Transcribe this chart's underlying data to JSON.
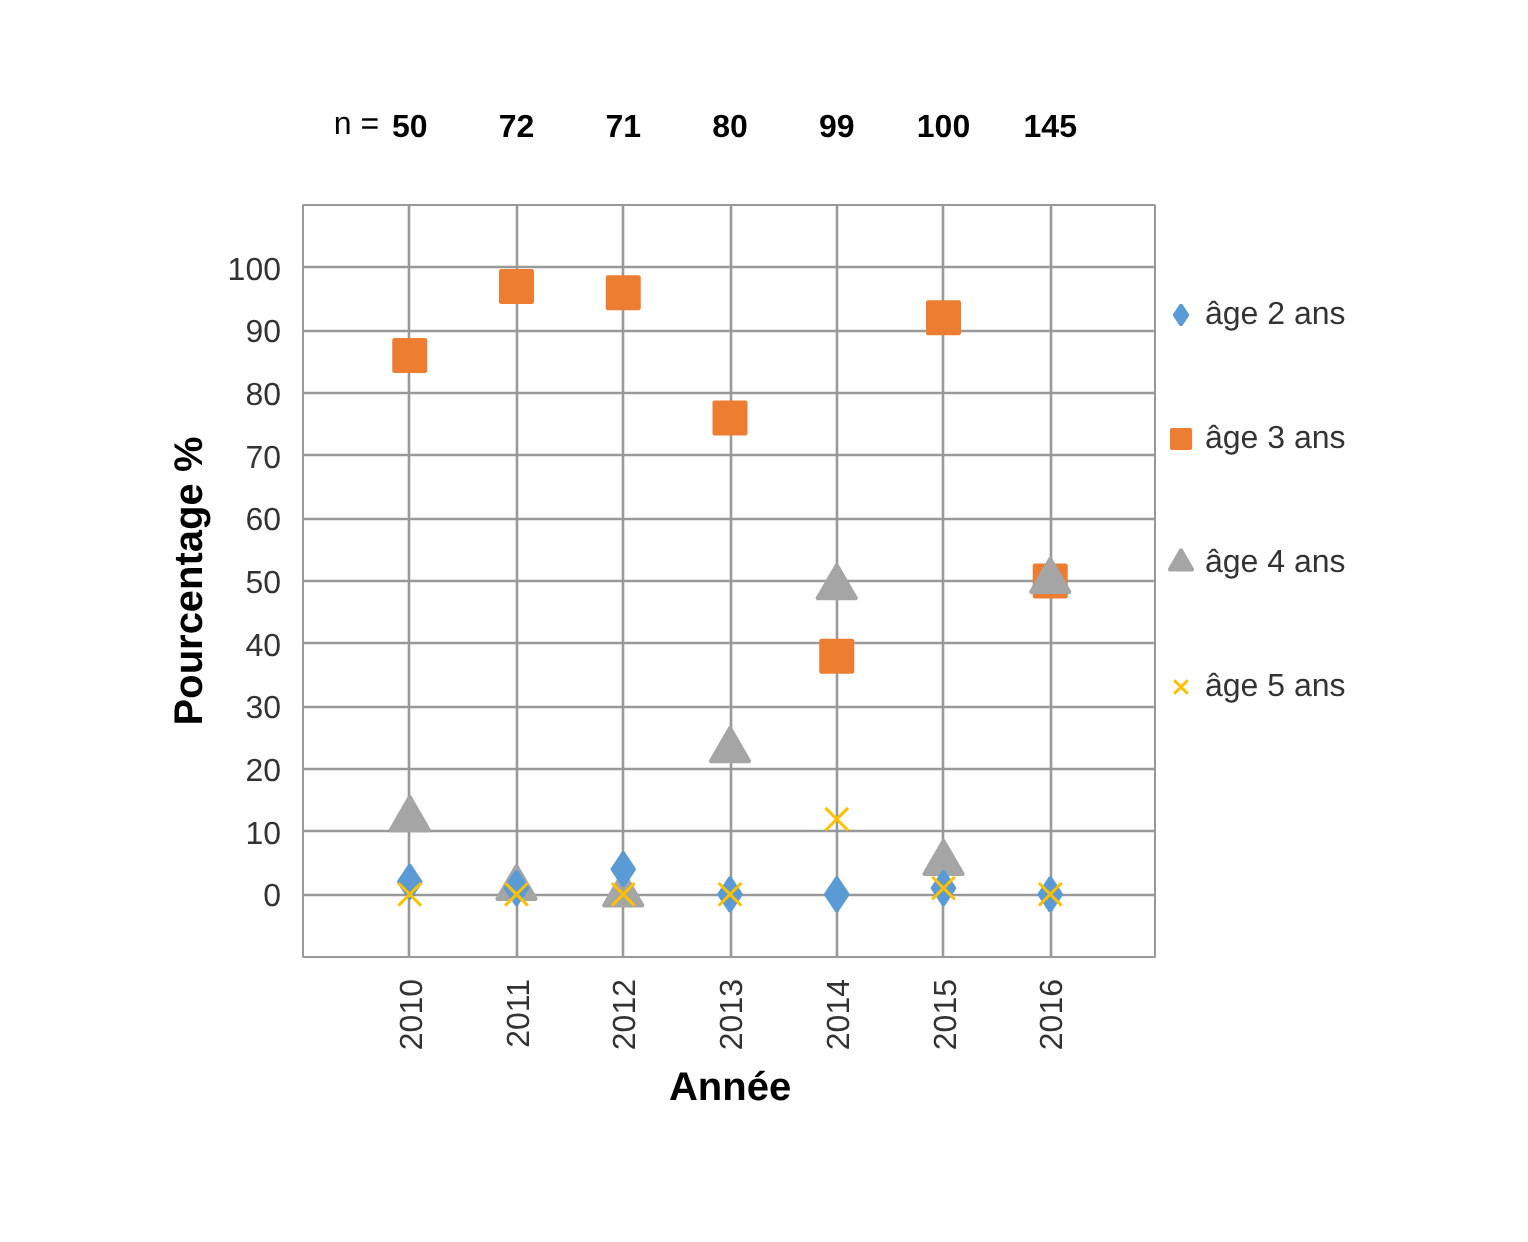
{
  "chart_data": {
    "type": "scatter",
    "xlabel": "Année",
    "ylabel": "Pourcentage %",
    "categories": [
      "2010",
      "2011",
      "2012",
      "2013",
      "2014",
      "2015",
      "2016"
    ],
    "series": [
      {
        "name": "âge 2 ans",
        "color": "#5b9bd5",
        "marker": "diamond",
        "values": [
          2,
          1,
          4,
          0,
          0,
          1,
          0
        ]
      },
      {
        "name": "âge 3 ans",
        "color": "#ed7d31",
        "marker": "square",
        "values": [
          86,
          97,
          96,
          76,
          38,
          92,
          50
        ]
      },
      {
        "name": "âge 4 ans",
        "color": "#a5a5a5",
        "marker": "triangle",
        "values": [
          12,
          1,
          0,
          23,
          49,
          5,
          50
        ]
      },
      {
        "name": "âge 5 ans",
        "color": "#ffc000",
        "marker": "cross",
        "values": [
          0,
          0,
          0,
          0,
          12,
          1,
          0
        ]
      }
    ],
    "ylim": [
      -10,
      110
    ],
    "yticks": [
      0,
      10,
      20,
      30,
      40,
      50,
      60,
      70,
      80,
      90,
      100
    ],
    "grid": true,
    "legend": "right",
    "annotations": [
      "n =",
      "50",
      "72",
      "71",
      "80",
      "99",
      "100",
      "145"
    ]
  }
}
